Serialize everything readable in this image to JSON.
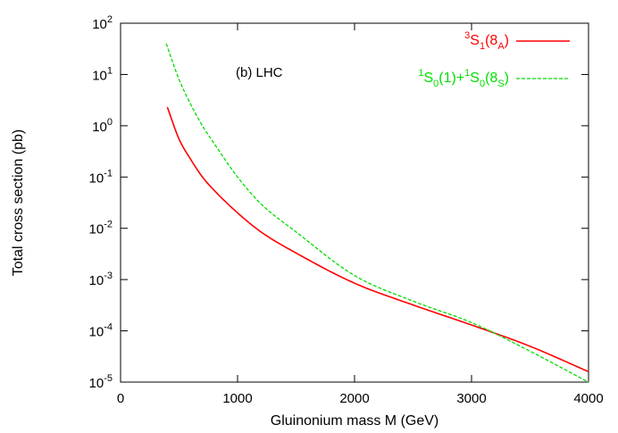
{
  "chart_data": {
    "type": "line",
    "title": "",
    "annotation": "(b) LHC",
    "xlabel": "Gluinonium mass M   (GeV)",
    "ylabel": "Total cross section  (pb)",
    "xlim": [
      0,
      4000
    ],
    "ylim": [
      1e-05,
      100
    ],
    "yscale": "log",
    "grid": false,
    "legend_position": "top-right",
    "xticks": [
      0,
      1000,
      2000,
      3000,
      4000
    ],
    "xtick_labels": [
      "0",
      "1000",
      "2000",
      "3000",
      "4000"
    ],
    "ytick_exponents": [
      2,
      1,
      0,
      -1,
      -2,
      -3,
      -4,
      -5
    ],
    "ytick_labels": [
      "10",
      "10",
      "10",
      "10",
      "10",
      "10",
      "10",
      "10"
    ],
    "ytick_superscripts": [
      "2",
      "1",
      "0",
      "-1",
      "-2",
      "-3",
      "-4",
      "-5"
    ],
    "series": [
      {
        "name": "3S1(8A)",
        "legend_parts": [
          {
            "text": "3",
            "shift": "super"
          },
          {
            "text": "S",
            "shift": "none"
          },
          {
            "text": "1",
            "shift": "sub"
          },
          {
            "text": "(8",
            "shift": "none"
          },
          {
            "text": "A",
            "shift": "sub"
          },
          {
            "text": ")",
            "shift": "none"
          }
        ],
        "color": "#ff0000",
        "dash": "solid",
        "x": [
          400,
          500,
          600,
          700,
          800,
          1000,
          1200,
          1500,
          2000,
          2500,
          3000,
          3500,
          4000
        ],
        "y": [
          2.3,
          0.55,
          0.22,
          0.1,
          0.055,
          0.02,
          0.0085,
          0.0033,
          0.00085,
          0.00032,
          0.00013,
          5e-05,
          1.6e-05
        ]
      },
      {
        "name": "1S0(1)+1S0(8S)",
        "legend_parts": [
          {
            "text": "1",
            "shift": "super"
          },
          {
            "text": "S",
            "shift": "none"
          },
          {
            "text": "0",
            "shift": "sub"
          },
          {
            "text": "(1)+",
            "shift": "none"
          },
          {
            "text": "1",
            "shift": "super"
          },
          {
            "text": "S",
            "shift": "none"
          },
          {
            "text": "0",
            "shift": "sub"
          },
          {
            "text": "(8",
            "shift": "none"
          },
          {
            "text": "S",
            "shift": "sub"
          },
          {
            "text": ")",
            "shift": "none"
          }
        ],
        "color": "#00dd00",
        "dash": "dashed",
        "x": [
          390,
          500,
          600,
          700,
          800,
          1000,
          1200,
          1500,
          2000,
          2500,
          3000,
          3500,
          4000
        ],
        "y": [
          40,
          8,
          2.6,
          1.0,
          0.45,
          0.1,
          0.03,
          0.0085,
          0.0012,
          0.00038,
          0.000145,
          4e-05,
          1e-05
        ]
      }
    ]
  }
}
